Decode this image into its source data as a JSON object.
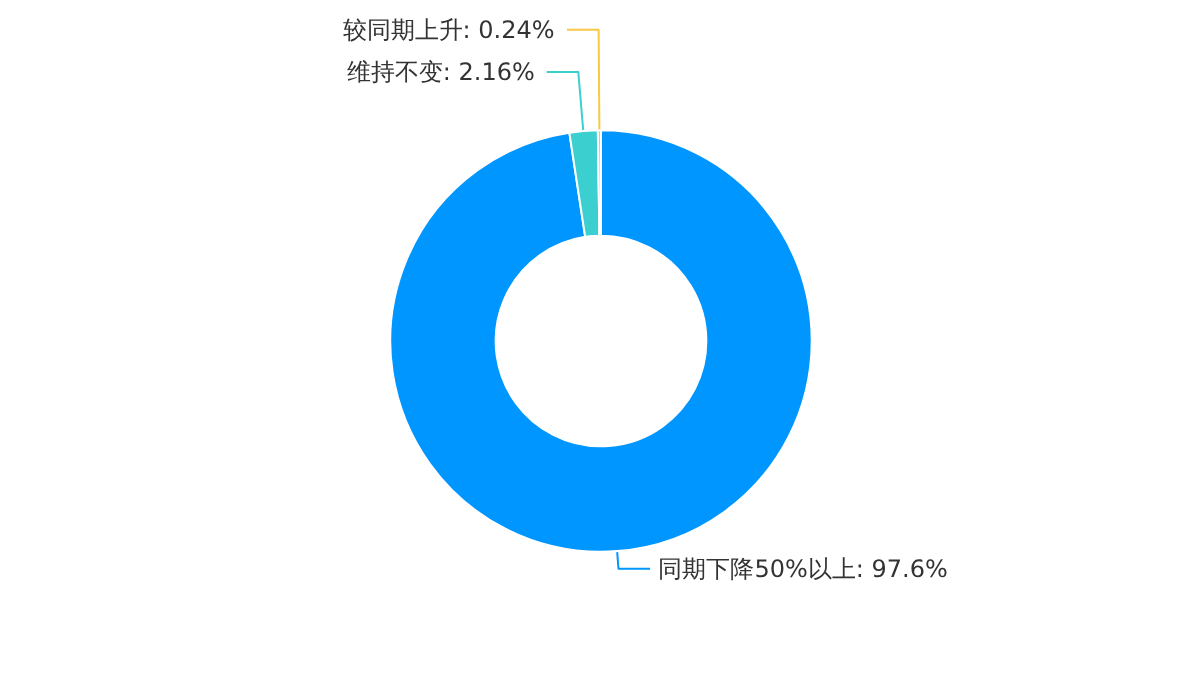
{
  "chart_data": {
    "type": "donut",
    "categories": [
      "同期下降50%以上",
      "维持不变",
      "较同期上升"
    ],
    "values": [
      97.6,
      2.16,
      0.24
    ],
    "value_labels": [
      "97.6%",
      "2.16%",
      "0.24%"
    ],
    "colors": [
      "#0096ff",
      "#3ccfcf",
      "#f8c846"
    ]
  }
}
